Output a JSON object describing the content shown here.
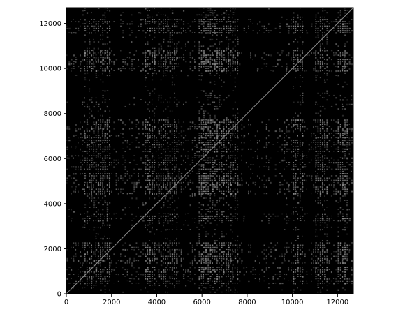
{
  "chart_data": {
    "type": "heatmap",
    "title": "",
    "xlabel": "",
    "ylabel": "",
    "xlim": [
      0,
      12700
    ],
    "ylim": [
      0,
      12700
    ],
    "x_ticks": [
      "0",
      "2000",
      "4000",
      "6000",
      "8000",
      "10000",
      "12000"
    ],
    "y_ticks": [
      "0",
      "2000",
      "4000",
      "6000",
      "8000",
      "10000",
      "12000"
    ],
    "grid": false,
    "legend": "none",
    "colormap": "gray",
    "background_color": "#000000",
    "mark_color": "#9a9a9a",
    "diagonal": {
      "from": [
        0,
        0
      ],
      "to": [
        12700,
        12700
      ]
    },
    "dense_bands_x": [
      [
        800,
        2000
      ],
      [
        3500,
        4000
      ],
      [
        4100,
        5000
      ],
      [
        5900,
        7600
      ],
      [
        10000,
        10500
      ],
      [
        11000,
        11600
      ],
      [
        12000,
        12500
      ]
    ],
    "dense_bands_y": [
      [
        400,
        1200
      ],
      [
        1300,
        2300
      ],
      [
        3200,
        3600
      ],
      [
        4400,
        5400
      ],
      [
        5500,
        6200
      ],
      [
        6300,
        7700
      ],
      [
        9800,
        10800
      ],
      [
        11500,
        12200
      ]
    ],
    "dark_bands_x": [
      [
        2000,
        2400
      ],
      [
        7600,
        8700
      ],
      [
        9000,
        9500
      ],
      [
        10500,
        10800
      ]
    ],
    "dark_bands_y": [
      [
        2300,
        2800
      ],
      [
        7700,
        8200
      ],
      [
        8800,
        9600
      ]
    ]
  }
}
